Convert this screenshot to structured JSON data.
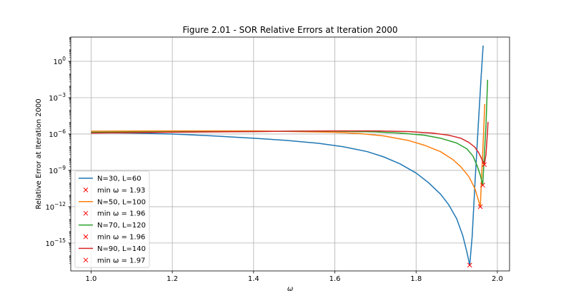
{
  "chart_data": {
    "type": "line",
    "title": "Figure 2.01 - SOR Relative Errors at Iteration 2000",
    "xlabel": "ω",
    "ylabel": "Relative Error at Iteration 2000",
    "yscale": "log",
    "xlim": [
      0.95,
      2.03
    ],
    "ylim": [
      5e-18,
      100.0
    ],
    "grid": true,
    "legend_position": "lower-left",
    "x_ticks": [
      {
        "value": 1.0,
        "label": "1.0"
      },
      {
        "value": 1.2,
        "label": "1.2"
      },
      {
        "value": 1.4,
        "label": "1.4"
      },
      {
        "value": 1.6,
        "label": "1.6"
      },
      {
        "value": 1.8,
        "label": "1.8"
      },
      {
        "value": 2.0,
        "label": "2.0"
      }
    ],
    "y_ticks": [
      {
        "exp": 0,
        "label_base": "10",
        "label_exp": "0"
      },
      {
        "exp": -3,
        "label_base": "10",
        "label_exp": "−3"
      },
      {
        "exp": -6,
        "label_base": "10",
        "label_exp": "−6"
      },
      {
        "exp": -9,
        "label_base": "10",
        "label_exp": "−9"
      },
      {
        "exp": -12,
        "label_base": "10",
        "label_exp": "−12"
      },
      {
        "exp": -15,
        "label_base": "10",
        "label_exp": "−15"
      }
    ],
    "series": [
      {
        "name": "N=30, L=60",
        "color": "#1f77b4",
        "min_label": "min ω = 1.93",
        "min_point": [
          1.932,
          1.5e-17
        ],
        "points": [
          [
            1.0,
            1.3e-06
          ],
          [
            1.1,
            1.2e-06
          ],
          [
            1.2,
            1e-06
          ],
          [
            1.3,
            7e-07
          ],
          [
            1.4,
            4.5e-07
          ],
          [
            1.48,
            3e-07
          ],
          [
            1.56,
            1.7e-07
          ],
          [
            1.62,
            9e-08
          ],
          [
            1.68,
            3.5e-08
          ],
          [
            1.72,
            1.3e-08
          ],
          [
            1.76,
            3.5e-09
          ],
          [
            1.8,
            6e-10
          ],
          [
            1.83,
            1e-10
          ],
          [
            1.86,
            1.1e-11
          ],
          [
            1.88,
            1.5e-12
          ],
          [
            1.9,
            1e-13
          ],
          [
            1.915,
            4e-15
          ],
          [
            1.925,
            1.8e-16
          ],
          [
            1.932,
            1.5e-17
          ],
          [
            1.938,
            3.5e-15
          ],
          [
            1.945,
            1e-10
          ],
          [
            1.953,
            5e-06
          ],
          [
            1.96,
            0.05
          ],
          [
            1.965,
            20.0
          ]
        ]
      },
      {
        "name": "N=50, L=100",
        "color": "#ff7f0e",
        "min_label": "min ω = 1.96",
        "min_point": [
          1.958,
          1e-12
        ],
        "points": [
          [
            1.0,
            1.7e-06
          ],
          [
            1.2,
            1.8e-06
          ],
          [
            1.4,
            1.8e-06
          ],
          [
            1.5,
            1.6e-06
          ],
          [
            1.6,
            1.4e-06
          ],
          [
            1.66,
            1.1e-06
          ],
          [
            1.72,
            7e-07
          ],
          [
            1.78,
            3e-07
          ],
          [
            1.82,
            1.2e-07
          ],
          [
            1.86,
            3.5e-08
          ],
          [
            1.89,
            8e-09
          ],
          [
            1.91,
            2e-09
          ],
          [
            1.93,
            3e-10
          ],
          [
            1.945,
            3e-11
          ],
          [
            1.952,
            5e-12
          ],
          [
            1.958,
            1e-12
          ],
          [
            1.962,
            1e-09
          ],
          [
            1.966,
            1e-06
          ],
          [
            1.969,
            0.0003
          ]
        ]
      },
      {
        "name": "N=70, L=120",
        "color": "#2ca02c",
        "min_label": "min ω = 1.96",
        "min_point": [
          1.964,
          6e-11
        ],
        "points": [
          [
            1.0,
            1.4e-06
          ],
          [
            1.2,
            1.5e-06
          ],
          [
            1.4,
            1.6e-06
          ],
          [
            1.5,
            1.7e-06
          ],
          [
            1.6,
            1.7e-06
          ],
          [
            1.7,
            1.5e-06
          ],
          [
            1.76,
            1.2e-06
          ],
          [
            1.82,
            8e-07
          ],
          [
            1.86,
            4.5e-07
          ],
          [
            1.9,
            1.8e-07
          ],
          [
            1.925,
            6e-08
          ],
          [
            1.94,
            1.5e-08
          ],
          [
            1.95,
            2.5e-09
          ],
          [
            1.958,
            4e-10
          ],
          [
            1.964,
            6e-11
          ],
          [
            1.968,
            2e-08
          ],
          [
            1.972,
            5e-06
          ],
          [
            1.976,
            0.03
          ]
        ]
      },
      {
        "name": "N=90, L=140",
        "color": "#d62728",
        "min_label": "min ω = 1.97",
        "min_point": [
          1.968,
          3e-09
        ],
        "points": [
          [
            1.0,
            1.2e-06
          ],
          [
            1.2,
            1.4e-06
          ],
          [
            1.4,
            1.6e-06
          ],
          [
            1.5,
            1.7e-06
          ],
          [
            1.6,
            1.8e-06
          ],
          [
            1.7,
            1.8e-06
          ],
          [
            1.78,
            1.6e-06
          ],
          [
            1.84,
            1.2e-06
          ],
          [
            1.88,
            8e-07
          ],
          [
            1.91,
            4.5e-07
          ],
          [
            1.93,
            2e-07
          ],
          [
            1.945,
            8e-08
          ],
          [
            1.955,
            2.5e-08
          ],
          [
            1.962,
            8e-09
          ],
          [
            1.968,
            3e-09
          ],
          [
            1.972,
            2e-08
          ],
          [
            1.976,
            2e-06
          ],
          [
            1.977,
            1e-05
          ]
        ]
      }
    ]
  }
}
